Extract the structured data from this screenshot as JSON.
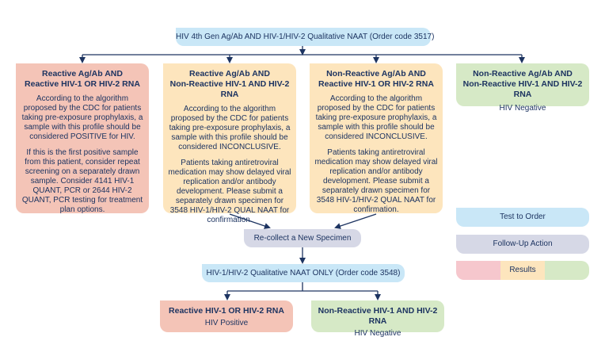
{
  "top": {
    "label": "HIV 4th Gen Ag/Ab AND HIV-1/HIV-2 Qualitative NAAT (Order code 3517)"
  },
  "outcomes": [
    {
      "title1": "Reactive Ag/Ab AND",
      "title2": "Reactive HIV-1 OR HIV-2 RNA",
      "p1": "According to the algorithm proposed by the CDC for patients taking pre-exposure prophylaxis, a sample with this profile should be considered POSITIVE for HIV.",
      "p2": "If this is the first positive sample from this patient, consider repeat screening on a separately drawn sample. Consider 4141 HIV-1 QUANT, PCR or 2644 HIV-2 QUANT, PCR testing for treatment plan options."
    },
    {
      "title1": "Reactive Ag/Ab AND",
      "title2": "Non-Reactive HIV-1 AND HIV-2 RNA",
      "p1": "According to the algorithm proposed by the CDC for patients taking pre-exposure prophylaxis, a sample with this profile should be considered INCONCLUSIVE.",
      "p2": "Patients taking antiretroviral medication may show delayed viral replication and/or antibody development. Please submit a separately drawn specimen for 3548 HIV-1/HIV-2 QUAL NAAT for confirmation."
    },
    {
      "title1": "Non-Reactive Ag/Ab AND",
      "title2": "Reactive HIV-1 OR HIV-2 RNA",
      "p1": "According to the algorithm proposed by the CDC for patients taking pre-exposure prophylaxis, a sample with this profile should be considered INCONCLUSIVE.",
      "p2": "Patients taking antiretroviral medication may show delayed viral replication and/or antibody development. Please submit a separately drawn specimen for 3548 HIV-1/HIV-2 QUAL NAAT for confirmation."
    },
    {
      "title1": "Non-Reactive Ag/Ab AND",
      "title2": "Non-Reactive HIV-1 AND HIV-2 RNA",
      "p1": "HIV Negative"
    }
  ],
  "recollect": {
    "label": "Re-collect a New Specimen"
  },
  "naat": {
    "label": "HIV-1/HIV-2 Qualitative NAAT ONLY (Order code 3548)"
  },
  "final": [
    {
      "title": "Reactive HIV-1 OR HIV-2 RNA",
      "text": "HIV Positive"
    },
    {
      "title": "Non-Reactive HIV-1 AND HIV-2 RNA",
      "text": "HIV Negative"
    }
  ],
  "legend": {
    "test": "Test to Order",
    "followup": "Follow-Up Action",
    "results": "Results"
  },
  "colors": {
    "test": "#c9e7f7",
    "followup": "#d6d8e6",
    "positive": "#f4c4b7",
    "inconclusive": "#fde5bd",
    "negative": "#d6e9c6",
    "lines": "#1d3461"
  }
}
